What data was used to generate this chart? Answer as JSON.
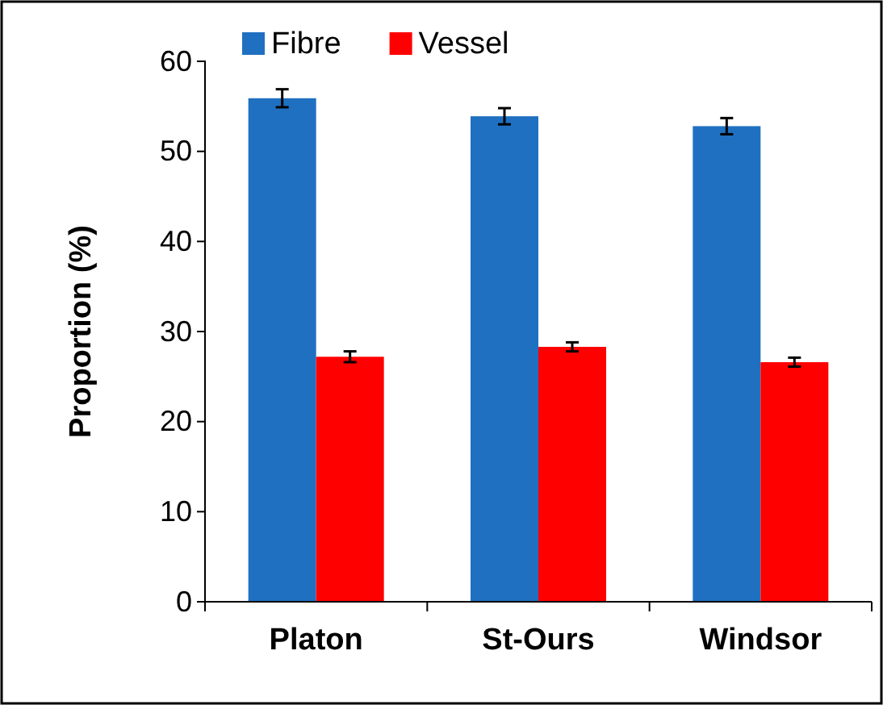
{
  "chart_data": {
    "type": "bar",
    "ylabel": "Proportion (%)",
    "categories": [
      "Platon",
      "St-Ours",
      "Windsor"
    ],
    "series": [
      {
        "name": "Fibre",
        "color": "#1f70c1",
        "values": [
          55.9,
          53.9,
          52.8
        ],
        "errors": [
          1.0,
          0.9,
          0.9
        ]
      },
      {
        "name": "Vessel",
        "color": "#ff0000",
        "values": [
          27.2,
          28.3,
          26.6
        ],
        "errors": [
          0.6,
          0.5,
          0.5
        ]
      }
    ],
    "ylim": [
      0,
      60
    ],
    "yticks": [
      0,
      10,
      20,
      30,
      40,
      50,
      60
    ],
    "grid": false,
    "legend": "top"
  }
}
